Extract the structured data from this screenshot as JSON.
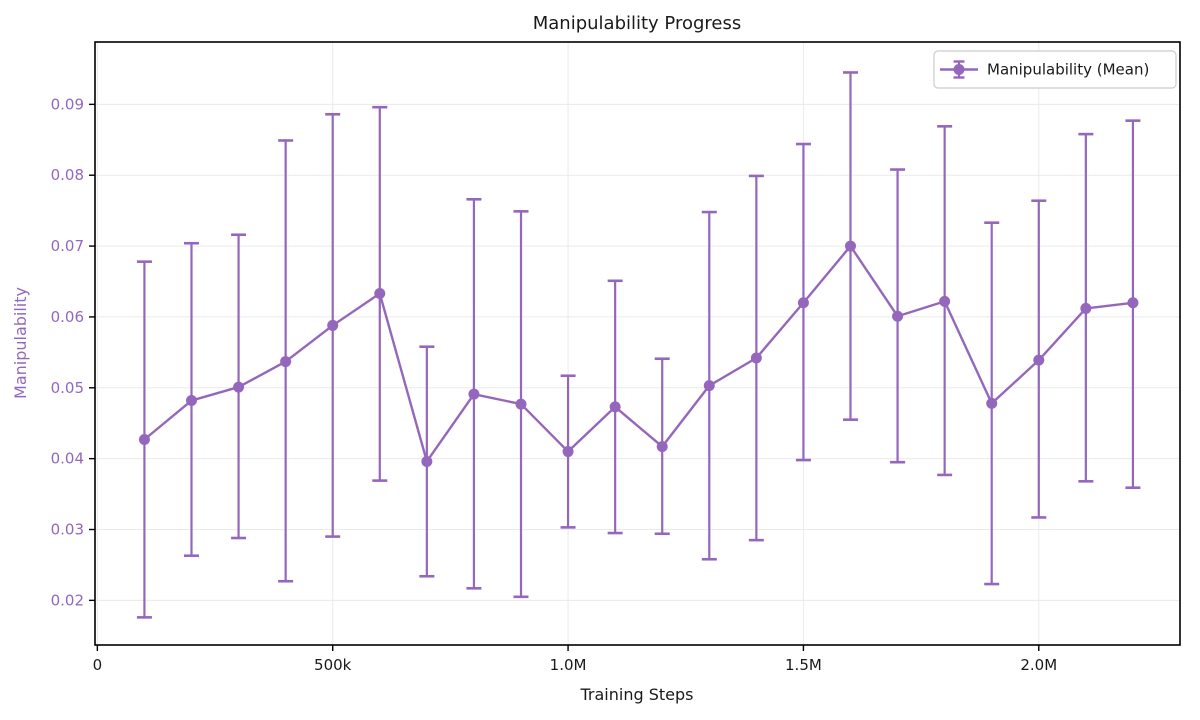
{
  "chart_data": {
    "type": "line",
    "title": "Manipulability Progress",
    "xlabel": "Training Steps",
    "ylabel": "Manipulability",
    "legend": {
      "label": "Manipulability (Mean)",
      "position": "upper-right"
    },
    "x": [
      100000,
      200000,
      300000,
      400000,
      500000,
      600000,
      700000,
      800000,
      900000,
      1000000,
      1100000,
      1200000,
      1300000,
      1400000,
      1500000,
      1600000,
      1700000,
      1800000,
      1900000,
      2000000,
      2100000,
      2200000
    ],
    "series": [
      {
        "name": "Manipulability (Mean)",
        "values": [
          0.0427,
          0.0482,
          0.0501,
          0.0537,
          0.0588,
          0.0633,
          0.0396,
          0.0491,
          0.0477,
          0.041,
          0.0473,
          0.0417,
          0.0503,
          0.0542,
          0.062,
          0.07,
          0.0601,
          0.0622,
          0.0478,
          0.0539,
          0.0612,
          0.062
        ],
        "err_low": [
          0.0176,
          0.0263,
          0.0288,
          0.0227,
          0.029,
          0.0369,
          0.0234,
          0.0217,
          0.0205,
          0.0303,
          0.0295,
          0.0294,
          0.0258,
          0.0285,
          0.0398,
          0.0455,
          0.0395,
          0.0377,
          0.0223,
          0.0317,
          0.0368,
          0.0359
        ],
        "err_high": [
          0.0678,
          0.0704,
          0.0716,
          0.0849,
          0.0886,
          0.0896,
          0.0558,
          0.0766,
          0.0749,
          0.0517,
          0.0651,
          0.0541,
          0.0748,
          0.0799,
          0.0844,
          0.0945,
          0.0808,
          0.0869,
          0.0733,
          0.0764,
          0.0858,
          0.0877
        ]
      }
    ],
    "xlim": [
      -5000,
      2300000
    ],
    "ylim": [
      0.0137,
      0.0988
    ],
    "x_ticks": [
      {
        "v": 0,
        "label": "0"
      },
      {
        "v": 500000,
        "label": "500k"
      },
      {
        "v": 1000000,
        "label": "1.0M"
      },
      {
        "v": 1500000,
        "label": "1.5M"
      },
      {
        "v": 2000000,
        "label": "2.0M"
      }
    ],
    "y_ticks": [
      {
        "v": 0.02,
        "label": "0.02"
      },
      {
        "v": 0.03,
        "label": "0.03"
      },
      {
        "v": 0.04,
        "label": "0.04"
      },
      {
        "v": 0.05,
        "label": "0.05"
      },
      {
        "v": 0.06,
        "label": "0.06"
      },
      {
        "v": 0.07,
        "label": "0.07"
      },
      {
        "v": 0.08,
        "label": "0.08"
      },
      {
        "v": 0.09,
        "label": "0.09"
      }
    ],
    "grid": true,
    "legend_position": "upper right",
    "colors": {
      "line": "#9467bd",
      "marker": "#9467bd",
      "errorbar": "#9467bd",
      "ytick_text": "#9467bd",
      "ylabel_text": "#9467bd",
      "xtick_text": "#1a1a1a",
      "title_text": "#1a1a1a",
      "xlabel_text": "#1a1a1a",
      "grid": "#eaeaea",
      "spine": "#000000",
      "legend_border": "#cccccc",
      "legend_bg": "#ffffff"
    }
  }
}
